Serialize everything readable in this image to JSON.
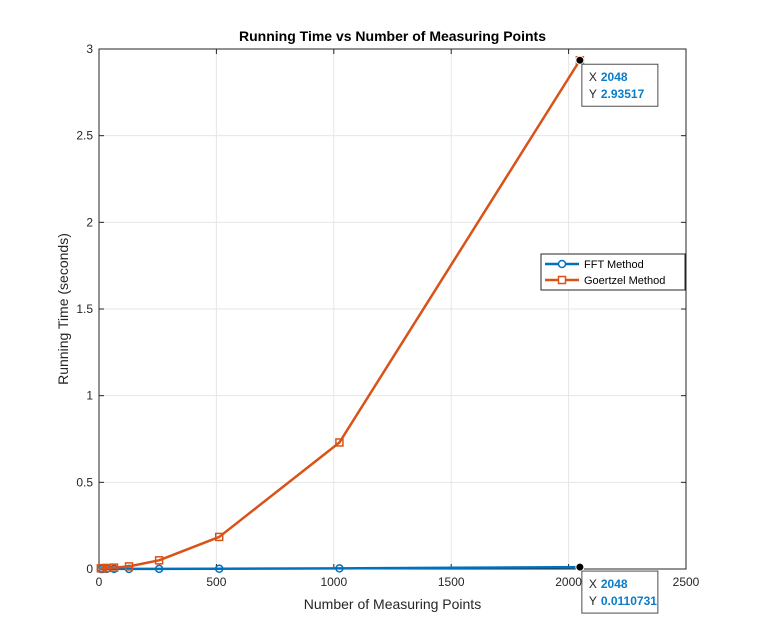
{
  "chart_data": {
    "type": "line",
    "title": "Running Time vs Number of Measuring Points",
    "xlabel": "Number of Measuring Points",
    "ylabel": "Running Time (seconds)",
    "xlim": [
      0,
      2500
    ],
    "ylim": [
      0,
      3
    ],
    "x_ticks": [
      0,
      500,
      1000,
      1500,
      2000,
      2500
    ],
    "y_ticks": [
      0,
      0.5,
      1,
      1.5,
      2,
      2.5,
      3
    ],
    "x_tick_labels": [
      "0",
      "500",
      "1000",
      "1500",
      "2000",
      "2500"
    ],
    "y_tick_labels": [
      "0",
      "0.5",
      "1",
      "1.5",
      "2",
      "2.5",
      "3"
    ],
    "grid": true,
    "legend_position": "right",
    "series": [
      {
        "name": "FFT Method",
        "color": "#0072BD",
        "marker": "circle",
        "x": [
          8,
          16,
          32,
          64,
          128,
          256,
          512,
          1024,
          2048
        ],
        "y": [
          0.0003,
          0.0003,
          0.0004,
          0.0005,
          0.0007,
          0.001,
          0.0018,
          0.0035,
          0.0110731
        ]
      },
      {
        "name": "Goertzel Method",
        "color": "#D95319",
        "marker": "square",
        "x": [
          8,
          16,
          32,
          64,
          128,
          256,
          512,
          1024,
          2048
        ],
        "y": [
          0.004,
          0.005,
          0.006,
          0.008,
          0.015,
          0.05,
          0.185,
          0.73,
          2.93517
        ]
      }
    ],
    "datatips": [
      {
        "x_key": "X",
        "y_key": "Y",
        "x_value": "2048",
        "y_value": "2.93517",
        "anchor_x": 2048,
        "anchor_y": 2.93517
      },
      {
        "x_key": "X",
        "y_key": "Y",
        "x_value": "2048",
        "y_value": "0.0110731",
        "anchor_x": 2048,
        "anchor_y": 0.0110731
      }
    ]
  }
}
